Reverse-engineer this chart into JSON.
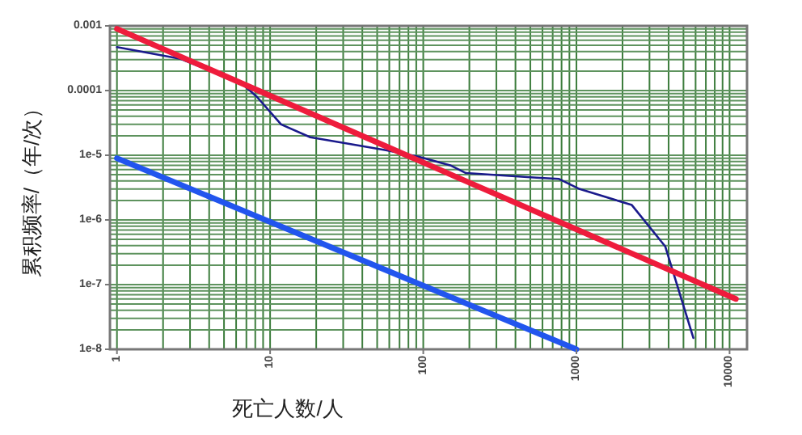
{
  "chart_data": {
    "type": "line",
    "xlabel": "死亡人数/人",
    "ylabel": "累积频率/（年/次）",
    "log": "xy",
    "grid": true,
    "xlim": [
      0.9,
      13000
    ],
    "ylim": [
      1e-08,
      0.001
    ],
    "xticks": [
      1,
      10,
      100,
      1000,
      10000
    ],
    "yticks": [
      {
        "value": 0.001,
        "label": "0.001"
      },
      {
        "value": 0.0001,
        "label": "0.0001"
      },
      {
        "value": 1e-05,
        "label": "1e-5"
      },
      {
        "value": 1e-06,
        "label": "1e-6"
      },
      {
        "value": 1e-07,
        "label": "1e-7"
      },
      {
        "value": 1e-08,
        "label": "1e-8"
      }
    ],
    "series": [
      {
        "color": "#1a1a8c",
        "x": [
          1,
          2.6,
          6.5,
          8.2,
          11.8,
          18.3,
          33,
          57,
          93,
          150,
          190,
          550,
          770,
          1050,
          2300,
          3800,
          5800
        ],
        "values": [
          0.00047,
          0.00031,
          0.00013,
          8e-05,
          3e-05,
          1.9e-05,
          1.5e-05,
          1.2e-05,
          9.5e-06,
          7e-06,
          5.3e-06,
          4.5e-06,
          4.3e-06,
          3e-06,
          1.7e-06,
          3.9e-07,
          1.5e-08
        ]
      },
      {
        "color": "#ee1c3c",
        "x": [
          1,
          11000
        ],
        "values": [
          0.0009,
          6e-08
        ]
      },
      {
        "color": "#2255ee",
        "x": [
          1,
          1000
        ],
        "values": [
          9e-06,
          1e-08
        ]
      }
    ]
  }
}
